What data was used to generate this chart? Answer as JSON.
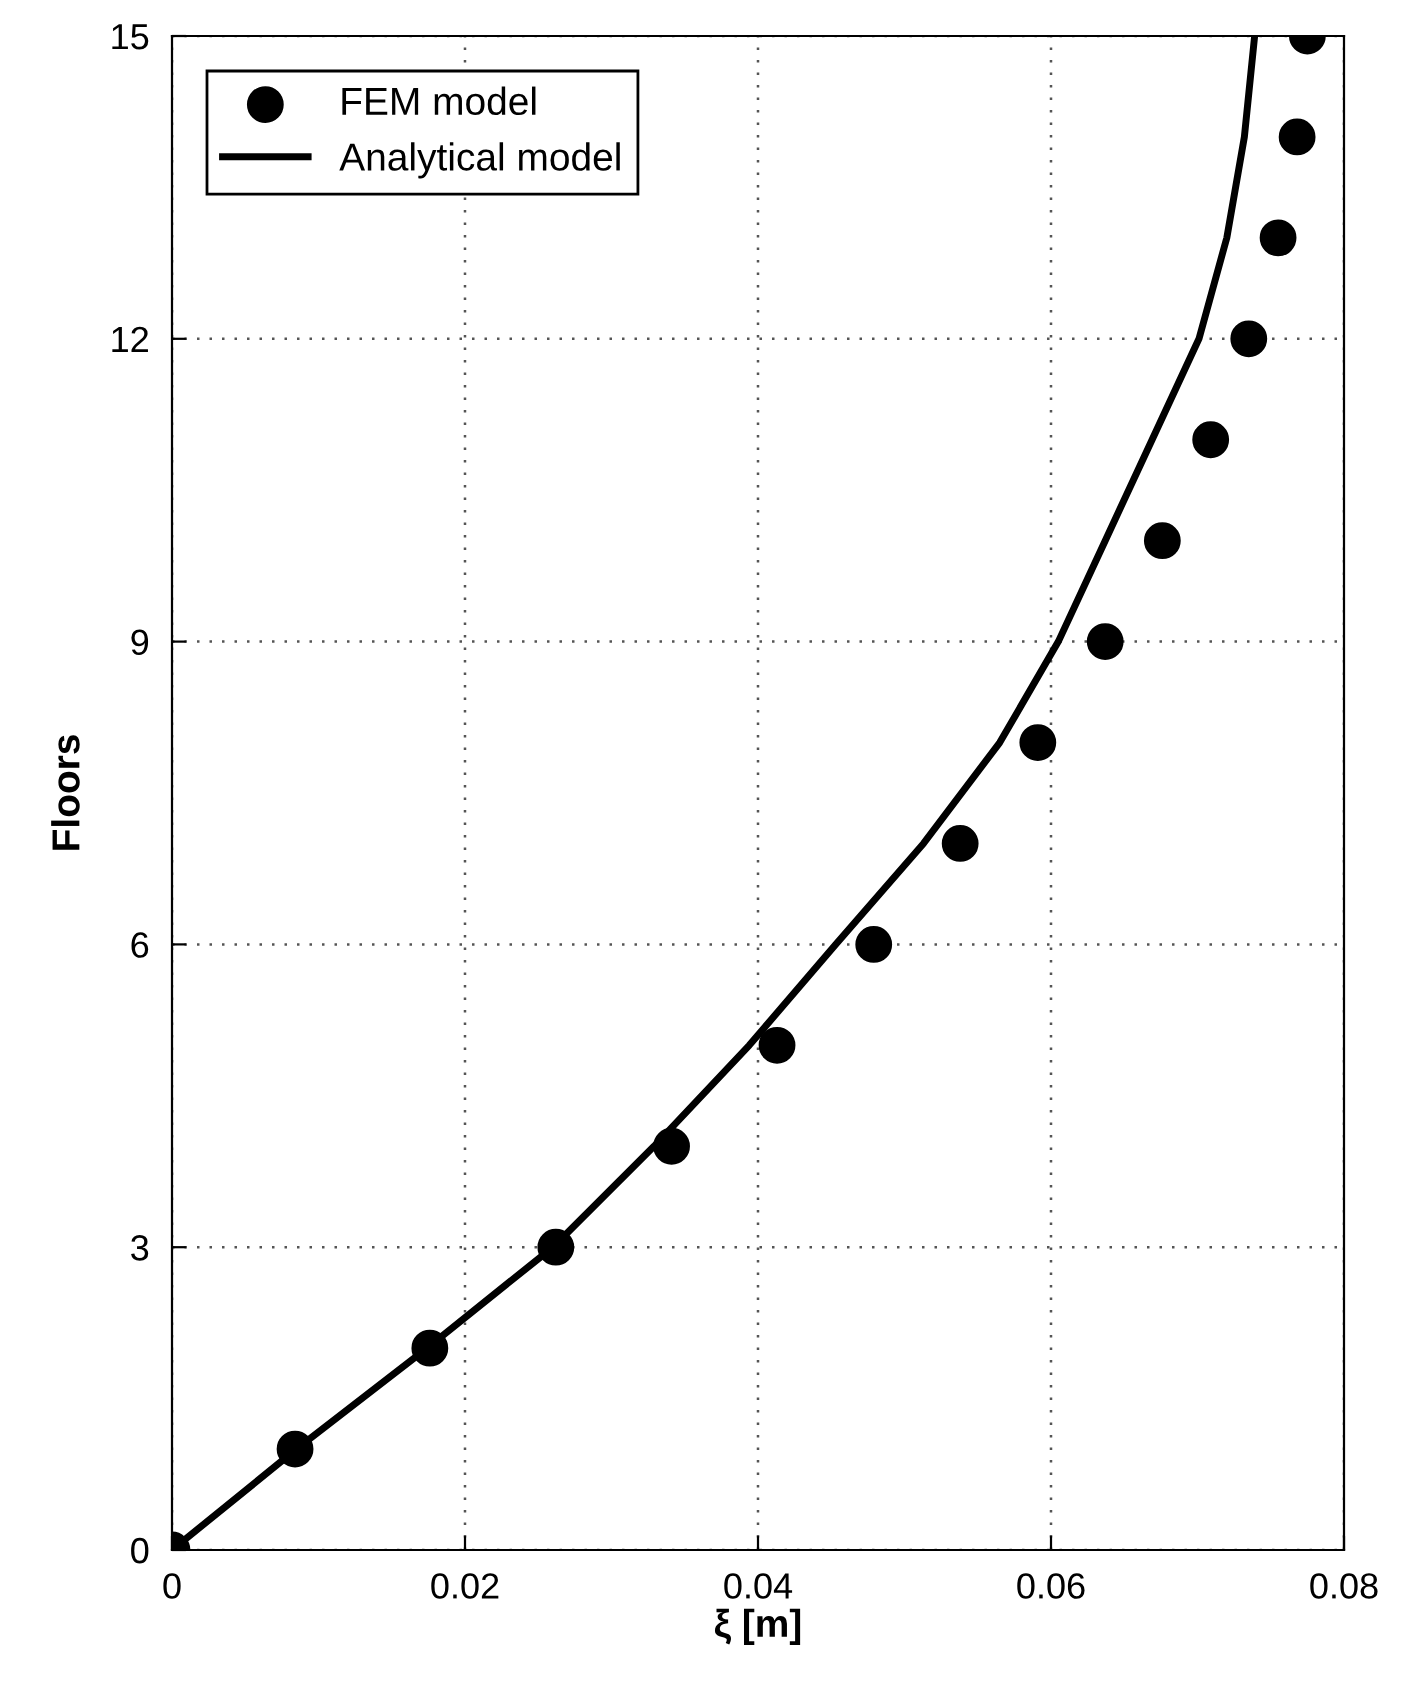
{
  "chart_data": {
    "type": "scatter",
    "xlabel": "ξ [m]",
    "ylabel": "Floors",
    "series": [
      {
        "name": "FEM model",
        "color": "#000000",
        "marker": "circle",
        "x": [
          0,
          0.0084,
          0.0176,
          0.0262,
          0.0341,
          0.0413,
          0.0479,
          0.0538,
          0.0591,
          0.0637,
          0.0676,
          0.0709,
          0.0735,
          0.0755,
          0.0768,
          0.0775
        ],
        "values": [
          0,
          1,
          2,
          3,
          4,
          5,
          6,
          7,
          8,
          9,
          10,
          11,
          12,
          13,
          14,
          15
        ]
      },
      {
        "name": "Analytical model",
        "type": "line",
        "color": "#000000",
        "line_style": "solid",
        "x": [
          0,
          0.0085,
          0.0174,
          0.026,
          0.0329,
          0.0394,
          0.0453,
          0.0513,
          0.0565,
          0.0605,
          0.0637,
          0.0669,
          0.0701,
          0.072,
          0.0732,
          0.0739
        ],
        "values": [
          0,
          1,
          2,
          3,
          4,
          5,
          6,
          7,
          8,
          9,
          10,
          11,
          12,
          13,
          14,
          15
        ]
      }
    ],
    "xlim": [
      0,
      0.08
    ],
    "xticks": [
      0,
      0.02,
      0.04,
      0.06,
      0.08
    ],
    "ylim": [
      0,
      15
    ],
    "yticks": [
      0,
      3,
      6,
      9,
      12,
      15
    ],
    "grid": true,
    "legend": "top left"
  }
}
